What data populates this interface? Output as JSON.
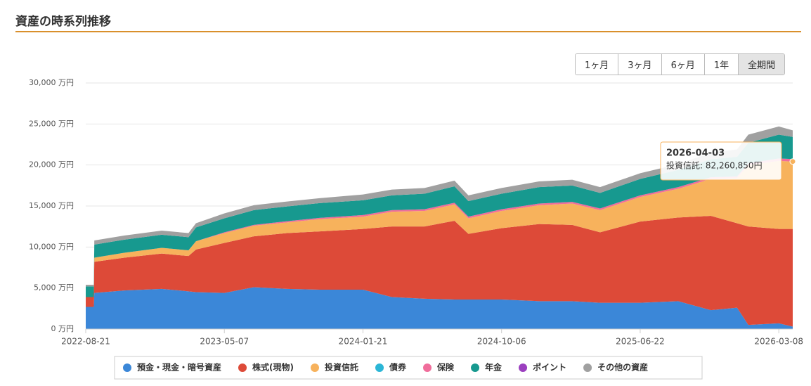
{
  "header": {
    "title": "資産の時系列推移"
  },
  "range_buttons": {
    "labels": [
      "1ヶ月",
      "3ヶ月",
      "6ヶ月",
      "1年",
      "全期間"
    ],
    "active": 4
  },
  "chart_data": {
    "type": "stacked-area",
    "x": [
      "2022-08-21",
      "2022-09-05",
      "2022-09-06",
      "2022-11-01",
      "2023-01-10",
      "2023-03-01",
      "2023-03-15",
      "2023-05-07",
      "2023-07-01",
      "2023-09-01",
      "2023-11-01",
      "2024-01-21",
      "2024-03-15",
      "2024-05-15",
      "2024-07-10",
      "2024-08-05",
      "2024-10-06",
      "2024-12-15",
      "2025-02-15",
      "2025-04-08",
      "2025-06-22",
      "2025-09-01",
      "2025-11-01",
      "2025-12-20",
      "2026-01-10",
      "2026-03-08",
      "2026-04-03"
    ],
    "series": [
      {
        "name": "預金・現金・暗号資産",
        "color": "#3b87d8",
        "values": [
          2700,
          2700,
          4400,
          4700,
          4900,
          4600,
          4500,
          4400,
          5100,
          4900,
          4800,
          4800,
          3900,
          3700,
          3600,
          3600,
          3600,
          3400,
          3400,
          3200,
          3200,
          3400,
          2300,
          2600,
          500,
          700,
          300
        ]
      },
      {
        "name": "株式(現物)",
        "color": "#dd4a38",
        "values": [
          1200,
          1200,
          3800,
          4000,
          4300,
          4300,
          5200,
          6100,
          6200,
          6800,
          7100,
          7400,
          8600,
          8800,
          9600,
          8000,
          8700,
          9400,
          9300,
          8600,
          9900,
          10200,
          11500,
          10300,
          12000,
          11500,
          11900
        ]
      },
      {
        "name": "投資信託",
        "color": "#f7b25c",
        "values": [
          0,
          0,
          500,
          600,
          700,
          700,
          1000,
          1200,
          1300,
          1300,
          1500,
          1500,
          1800,
          1900,
          2000,
          1900,
          2100,
          2300,
          2600,
          2700,
          3000,
          3500,
          4500,
          5500,
          7500,
          8300,
          8226.085
        ]
      },
      {
        "name": "債券",
        "color": "#2bb6d6",
        "values": [
          0,
          0,
          0,
          0,
          0,
          0,
          0,
          0,
          0,
          0,
          0,
          0,
          0,
          0,
          0,
          0,
          0,
          0,
          0,
          0,
          0,
          0,
          0,
          0,
          0,
          0,
          0
        ]
      },
      {
        "name": "保険",
        "color": "#f06d9b",
        "values": [
          0,
          0,
          0,
          0,
          0,
          0,
          0,
          100,
          100,
          150,
          150,
          200,
          200,
          200,
          200,
          200,
          200,
          200,
          200,
          200,
          200,
          200,
          200,
          200,
          200,
          300,
          300
        ]
      },
      {
        "name": "年金",
        "color": "#17998f",
        "values": [
          1300,
          1300,
          1600,
          1600,
          1600,
          1600,
          1700,
          1700,
          1800,
          1800,
          1800,
          1800,
          1800,
          1900,
          2000,
          1900,
          1900,
          2000,
          2000,
          1900,
          2000,
          2100,
          2200,
          2400,
          2500,
          2900,
          2700
        ]
      },
      {
        "name": "ポイント",
        "color": "#9b3fbf",
        "values": [
          0,
          0,
          0,
          0,
          0,
          0,
          0,
          0,
          0,
          0,
          0,
          0,
          0,
          0,
          0,
          0,
          0,
          0,
          0,
          0,
          0,
          0,
          0,
          0,
          0,
          0,
          0
        ]
      },
      {
        "name": "その他の資産",
        "color": "#a0a0a0",
        "values": [
          200,
          200,
          500,
          500,
          500,
          500,
          500,
          600,
          600,
          600,
          600,
          700,
          700,
          700,
          700,
          700,
          700,
          700,
          700,
          700,
          700,
          700,
          800,
          900,
          1000,
          1000,
          800
        ]
      }
    ],
    "xlim": [
      "2022-08-21",
      "2026-04-03"
    ],
    "xticks": [
      "2022-08-21",
      "2023-05-07",
      "2024-01-21",
      "2024-10-06",
      "2025-06-22",
      "2026-03-08"
    ],
    "ylim": [
      0,
      30000
    ],
    "yticks": [
      {
        "value": 0,
        "label": "0 万円"
      },
      {
        "value": 5000,
        "label": "5,000 万円"
      },
      {
        "value": 10000,
        "label": "10,000 万円"
      },
      {
        "value": 15000,
        "label": "15,000 万円"
      },
      {
        "value": 20000,
        "label": "20,000 万円"
      },
      {
        "value": 25000,
        "label": "25,000 万円"
      },
      {
        "value": 30000,
        "label": "30,000 万円"
      }
    ],
    "grid": true,
    "tooltip": {
      "title": "2026-04-03",
      "text": "投資信託: 82,260,850円"
    }
  }
}
